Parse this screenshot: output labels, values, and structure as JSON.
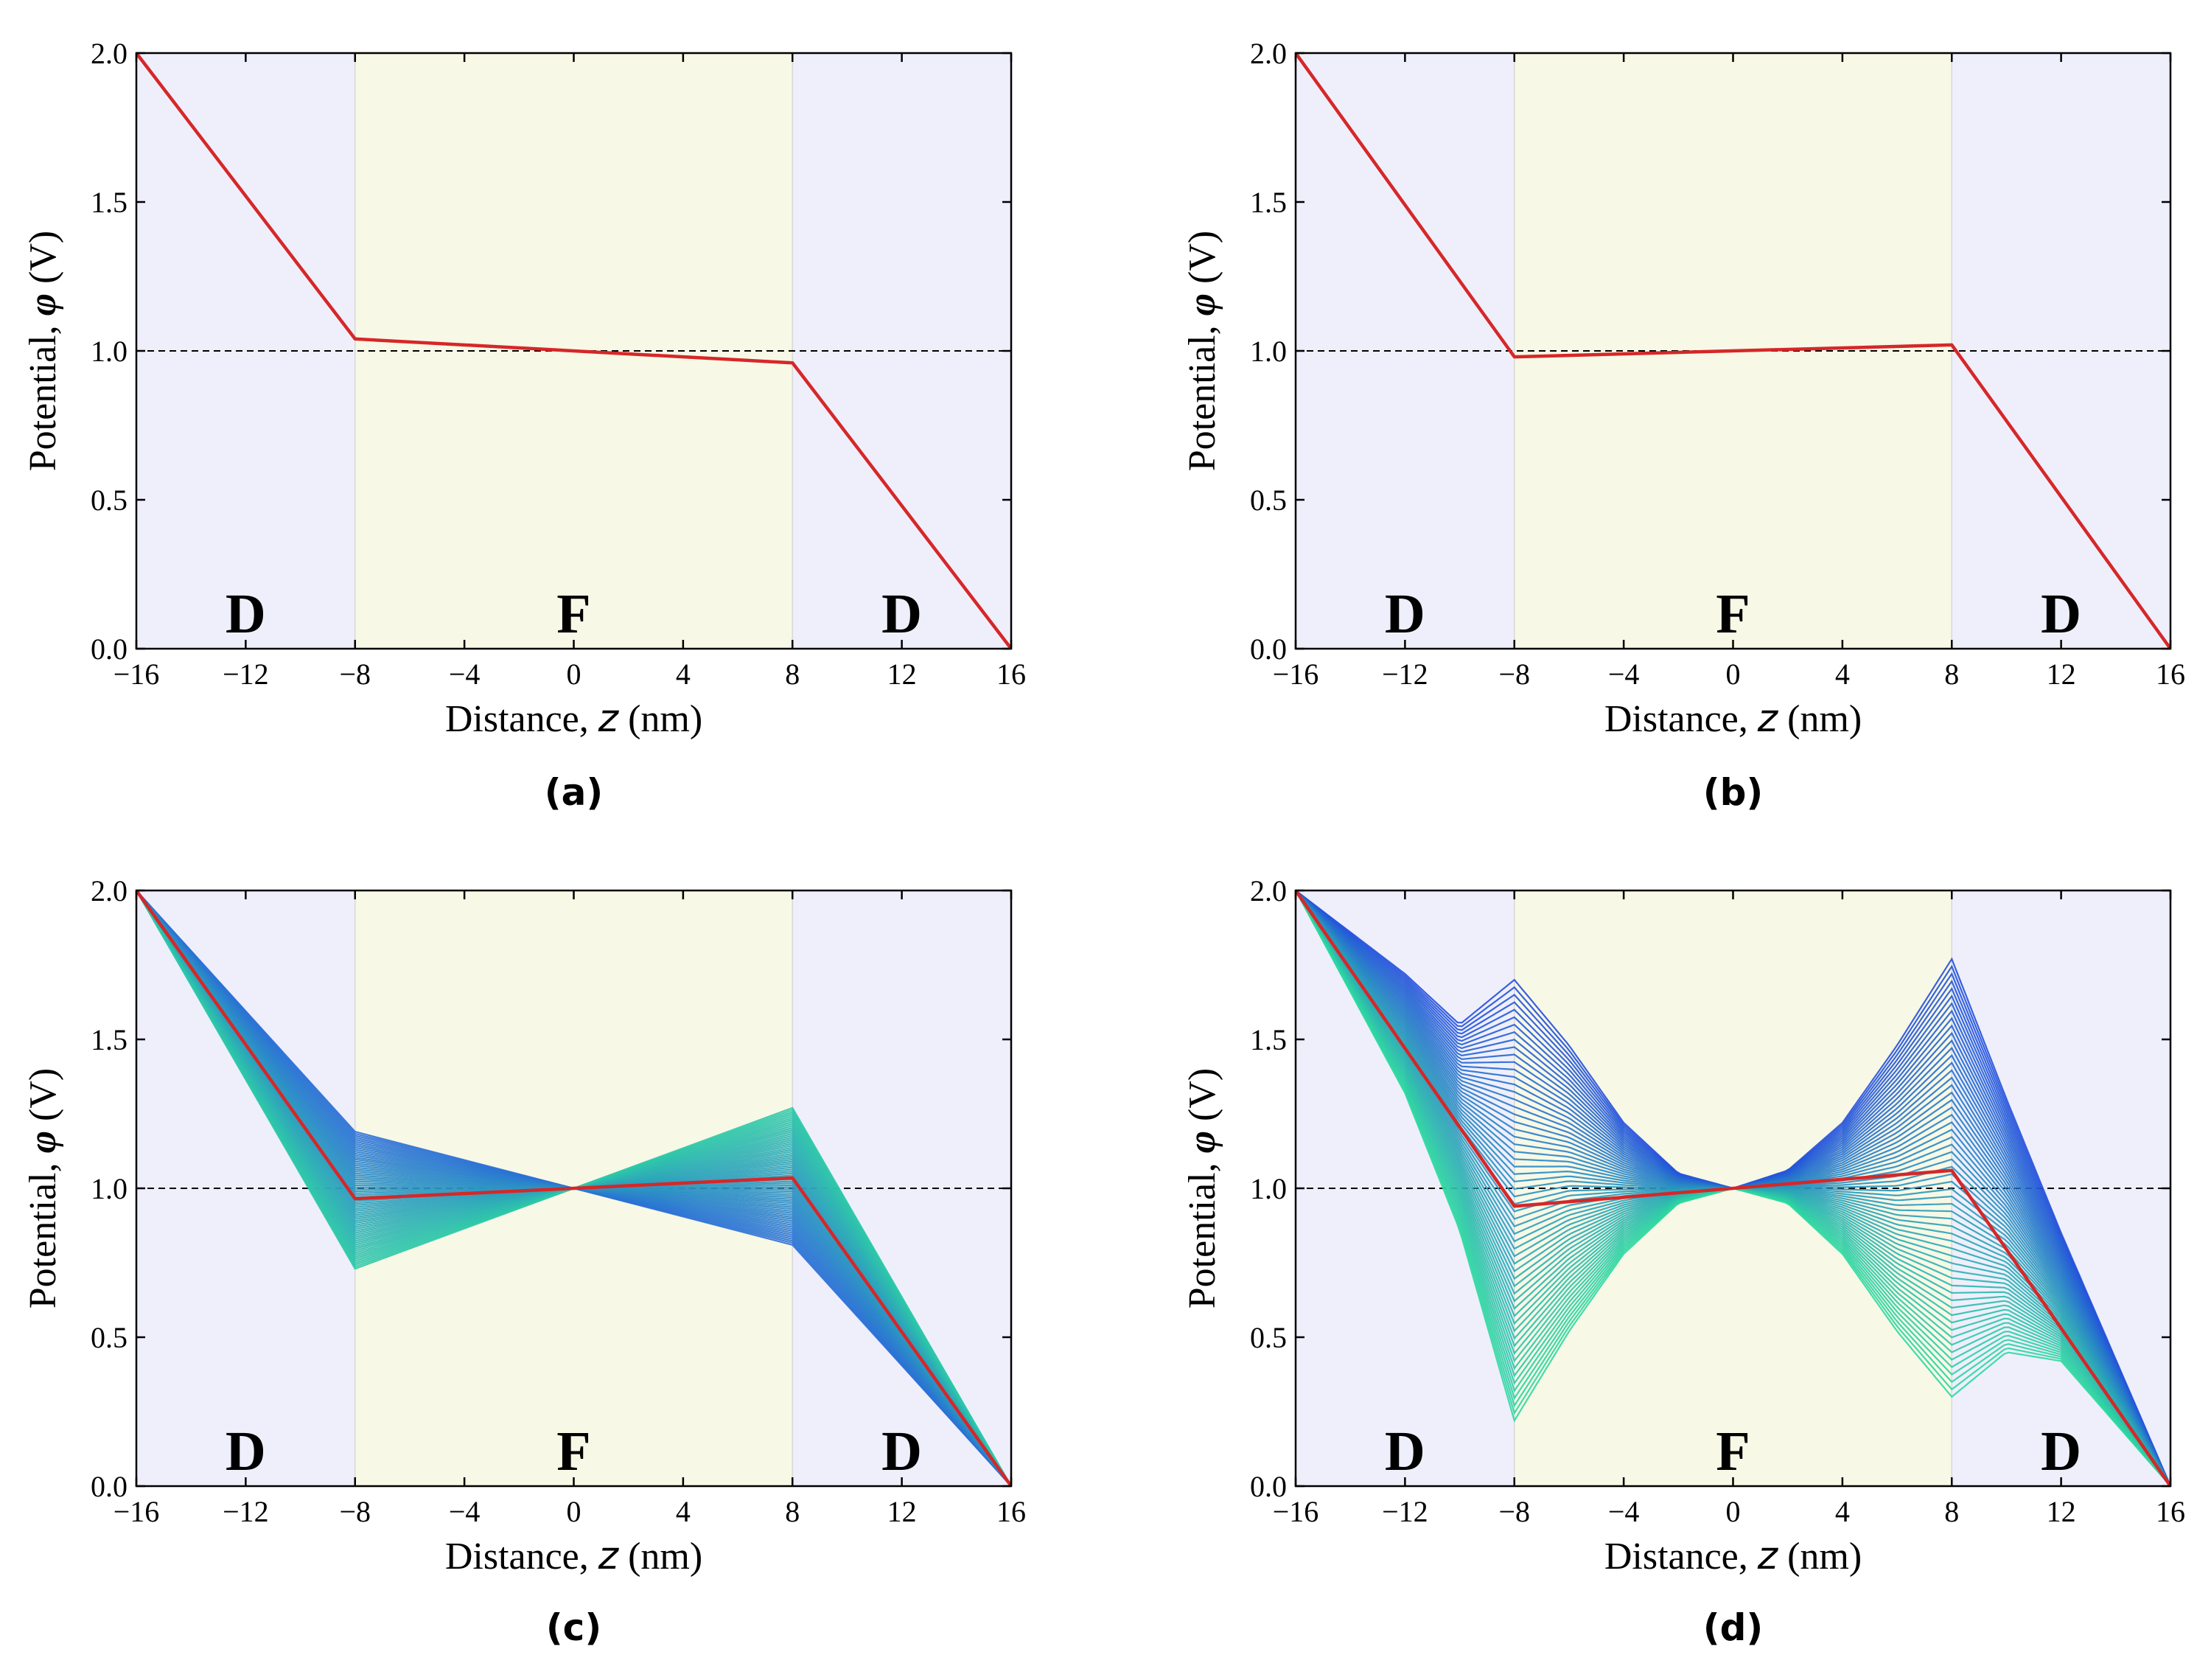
{
  "chart_data": [
    {
      "type": "line",
      "panel": "(a)",
      "xlabel_prefix": "Distance, ",
      "xlabel_var": "z",
      "xlabel_suffix": " (nm)",
      "ylabel_prefix": "Potential, ",
      "ylabel_var": "φ",
      "ylabel_suffix": " (V)",
      "xlim": [
        -16,
        16
      ],
      "ylim": [
        0,
        2
      ],
      "xticks": [
        -16,
        -12,
        -8,
        -4,
        0,
        4,
        8,
        12,
        16
      ],
      "xtick_labels": [
        "−16",
        "−12",
        "−8",
        "−4",
        "0",
        "4",
        "8",
        "12",
        "16"
      ],
      "yticks": [
        0,
        0.5,
        1,
        1.5,
        2
      ],
      "ytick_labels": [
        "0.0",
        "0.5",
        "1.0",
        "1.5",
        "2.0"
      ],
      "regions": [
        {
          "label": "D",
          "from": -16,
          "to": -8,
          "color": "#efeffc"
        },
        {
          "label": "F",
          "from": -8,
          "to": 8,
          "color": "#f8f8e6"
        },
        {
          "label": "D",
          "from": 8,
          "to": 16,
          "color": "#efeffc"
        }
      ],
      "reference_line": {
        "y": 1.0,
        "style": "dashed"
      },
      "fan": null,
      "series": [
        {
          "name": "potential",
          "color": "#d62728",
          "x": [
            -16,
            -8,
            8,
            16
          ],
          "y": [
            2.0,
            1.04,
            0.96,
            0.0
          ]
        }
      ]
    },
    {
      "type": "line",
      "panel": "(b)",
      "xlabel_prefix": "Distance, ",
      "xlabel_var": "z",
      "xlabel_suffix": " (nm)",
      "ylabel_prefix": "Potential, ",
      "ylabel_var": "φ",
      "ylabel_suffix": " (V)",
      "xlim": [
        -16,
        16
      ],
      "ylim": [
        0,
        2
      ],
      "xticks": [
        -16,
        -12,
        -8,
        -4,
        0,
        4,
        8,
        12,
        16
      ],
      "xtick_labels": [
        "−16",
        "−12",
        "−8",
        "−4",
        "0",
        "4",
        "8",
        "12",
        "16"
      ],
      "yticks": [
        0,
        0.5,
        1,
        1.5,
        2
      ],
      "ytick_labels": [
        "0.0",
        "0.5",
        "1.0",
        "1.5",
        "2.0"
      ],
      "regions": [
        {
          "label": "D",
          "from": -16,
          "to": -8,
          "color": "#efeffc"
        },
        {
          "label": "F",
          "from": -8,
          "to": 8,
          "color": "#f8f8e6"
        },
        {
          "label": "D",
          "from": 8,
          "to": 16,
          "color": "#efeffc"
        }
      ],
      "reference_line": {
        "y": 1.0,
        "style": "dashed"
      },
      "fan": null,
      "series": [
        {
          "name": "potential",
          "color": "#d62728",
          "x": [
            -16,
            -8,
            8,
            16
          ],
          "y": [
            2.0,
            0.98,
            1.02,
            0.0
          ]
        }
      ]
    },
    {
      "type": "line",
      "panel": "(c)",
      "xlabel_prefix": "Distance, ",
      "xlabel_var": "z",
      "xlabel_suffix": " (nm)",
      "ylabel_prefix": "Potential, ",
      "ylabel_var": "φ",
      "ylabel_suffix": " (V)",
      "xlim": [
        -16,
        16
      ],
      "ylim": [
        0,
        2
      ],
      "xticks": [
        -16,
        -12,
        -8,
        -4,
        0,
        4,
        8,
        12,
        16
      ],
      "xtick_labels": [
        "−16",
        "−12",
        "−8",
        "−4",
        "0",
        "4",
        "8",
        "12",
        "16"
      ],
      "yticks": [
        0,
        0.5,
        1,
        1.5,
        2
      ],
      "ytick_labels": [
        "0.0",
        "0.5",
        "1.0",
        "1.5",
        "2.0"
      ],
      "regions": [
        {
          "label": "D",
          "from": -16,
          "to": -8,
          "color": "#efeffc"
        },
        {
          "label": "F",
          "from": -8,
          "to": 8,
          "color": "#f8f8e6"
        },
        {
          "label": "D",
          "from": 8,
          "to": 16,
          "color": "#efeffc"
        }
      ],
      "reference_line": {
        "y": 1.0,
        "style": "dashed"
      },
      "fan": {
        "count": 70,
        "color_start": "#2a6fd6",
        "color_end": "#2ec8a8",
        "mode": "linear-tilt",
        "top": {
          "x": [
            -16,
            -8,
            8,
            16
          ],
          "y": [
            2.0,
            1.19,
            0.81,
            0.0
          ]
        },
        "bottom": {
          "x": [
            -16,
            -8,
            8,
            16
          ],
          "y": [
            2.0,
            0.73,
            1.27,
            0.0
          ]
        }
      },
      "series": [
        {
          "name": "potential",
          "color": "#d62728",
          "x": [
            -16,
            -8,
            8,
            16
          ],
          "y": [
            2.0,
            0.965,
            1.035,
            0.0
          ]
        }
      ]
    },
    {
      "type": "line",
      "panel": "(d)",
      "xlabel_prefix": "Distance, ",
      "xlabel_var": "z",
      "xlabel_suffix": " (nm)",
      "ylabel_prefix": "Potential, ",
      "ylabel_var": "φ",
      "ylabel_suffix": " (V)",
      "xlim": [
        -16,
        16
      ],
      "ylim": [
        0,
        2
      ],
      "xticks": [
        -16,
        -12,
        -8,
        -4,
        0,
        4,
        8,
        12,
        16
      ],
      "xtick_labels": [
        "−16",
        "−12",
        "−8",
        "−4",
        "0",
        "4",
        "8",
        "12",
        "16"
      ],
      "yticks": [
        0,
        0.5,
        1,
        1.5,
        2
      ],
      "ytick_labels": [
        "0.0",
        "0.5",
        "1.0",
        "1.5",
        "2.0"
      ],
      "regions": [
        {
          "label": "D",
          "from": -16,
          "to": -8,
          "color": "#efeffc"
        },
        {
          "label": "F",
          "from": -8,
          "to": 8,
          "color": "#f8f8e6"
        },
        {
          "label": "D",
          "from": 8,
          "to": 16,
          "color": "#efeffc"
        }
      ],
      "reference_line": {
        "y": 1.0,
        "style": "dashed"
      },
      "fan": {
        "count": 60,
        "color_start": "#2450dc",
        "color_end": "#2ed8a0",
        "mode": "bowtie",
        "upper": {
          "x": [
            -16,
            -12,
            -10,
            -8,
            -6,
            -4,
            -2,
            0,
            2,
            4,
            6,
            8,
            10,
            12,
            16
          ],
          "y": [
            2.0,
            1.72,
            1.55,
            1.7,
            1.48,
            1.22,
            1.05,
            1.0,
            1.06,
            1.22,
            1.48,
            1.77,
            1.3,
            0.85,
            0.0
          ]
        },
        "lower": {
          "x": [
            -16,
            -12,
            -10,
            -8,
            -6,
            -4,
            -2,
            0,
            2,
            4,
            6,
            8,
            10,
            12,
            16
          ],
          "y": [
            2.0,
            1.32,
            0.86,
            0.22,
            0.52,
            0.78,
            0.95,
            1.0,
            0.95,
            0.78,
            0.52,
            0.3,
            0.45,
            0.42,
            0.0
          ]
        }
      },
      "series": [
        {
          "name": "potential",
          "color": "#d62728",
          "x": [
            -16,
            -8,
            8,
            16
          ],
          "y": [
            2.0,
            0.94,
            1.06,
            0.0
          ]
        }
      ]
    }
  ]
}
